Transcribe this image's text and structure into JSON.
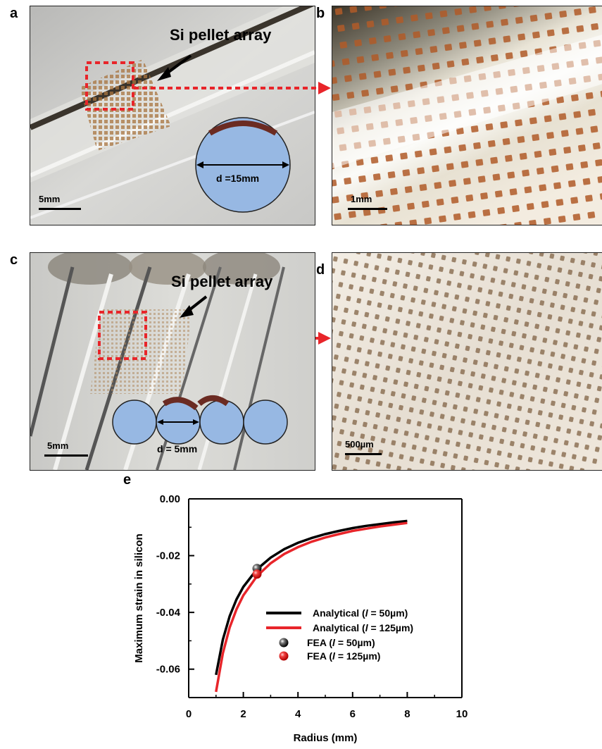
{
  "panels": {
    "a": {
      "label": "a",
      "callout": "Si pellet array",
      "scale_label": "5mm",
      "diameter_label": "d =15mm"
    },
    "b": {
      "label": "b",
      "scale_label": "1mm"
    },
    "c": {
      "label": "c",
      "callout": "Si pellet array",
      "scale_label": "5mm",
      "diameter_label": "d = 5mm"
    },
    "d": {
      "label": "d",
      "scale_label": "500µm"
    },
    "e": {
      "label": "e"
    }
  },
  "colors": {
    "circle_fill": "#97b8e3",
    "pellet_cap": "#6b2b22",
    "dash_red": "#e8252a",
    "pellet_brown": "#a8622e",
    "analytical_50": "#000000",
    "analytical_125": "#e8252a"
  },
  "chart_data": {
    "type": "line",
    "xlabel": "Radius (mm)",
    "ylabel": "Maximum strain in silicon",
    "xlim": [
      0,
      10
    ],
    "ylim": [
      -0.07,
      0.0
    ],
    "xticks": [
      "0",
      "2",
      "4",
      "6",
      "8",
      "10"
    ],
    "yticks": [
      "0.00",
      "-0.02",
      "-0.04",
      "-0.06"
    ],
    "grid": false,
    "legend_position": "lower-right",
    "series": [
      {
        "name": "Analytical (l = 50µm)",
        "legend_prefix": "Analytical (",
        "legend_var": "l",
        "legend_suffix": " = 50µm)",
        "kind": "line",
        "color": "#000000",
        "x": [
          1.0,
          1.25,
          1.5,
          1.75,
          2.0,
          2.5,
          3.0,
          3.5,
          4.0,
          4.5,
          5.0,
          5.5,
          6.0,
          6.5,
          7.0,
          7.5,
          8.0
        ],
        "y": [
          -0.062,
          -0.0496,
          -0.0413,
          -0.0354,
          -0.031,
          -0.0248,
          -0.0207,
          -0.0177,
          -0.0155,
          -0.0138,
          -0.0124,
          -0.0113,
          -0.0103,
          -0.0095,
          -0.0089,
          -0.0083,
          -0.0078
        ]
      },
      {
        "name": "Analytical (l = 125µm)",
        "legend_prefix": "Analytical (",
        "legend_var": "l",
        "legend_suffix": " = 125µm)",
        "kind": "line",
        "color": "#e8252a",
        "x": [
          1.0,
          1.25,
          1.5,
          1.75,
          2.0,
          2.5,
          3.0,
          3.5,
          4.0,
          4.5,
          5.0,
          5.5,
          6.0,
          6.5,
          7.0,
          7.5,
          8.0
        ],
        "y": [
          -0.068,
          -0.0544,
          -0.0453,
          -0.0389,
          -0.034,
          -0.0272,
          -0.0227,
          -0.0194,
          -0.017,
          -0.0151,
          -0.0136,
          -0.0124,
          -0.0113,
          -0.0105,
          -0.0097,
          -0.0091,
          -0.0085
        ]
      },
      {
        "name": "FEA (l = 50µm)",
        "legend_prefix": "FEA (",
        "legend_var": "l",
        "legend_suffix": " = 50µm)",
        "kind": "scatter",
        "color": "#000000",
        "x": [
          2.5
        ],
        "y": [
          -0.0245
        ]
      },
      {
        "name": "FEA (l = 125µm)",
        "legend_prefix": "FEA (",
        "legend_var": "l",
        "legend_suffix": " = 125µm)",
        "kind": "scatter",
        "color": "#e8252a",
        "x": [
          2.5
        ],
        "y": [
          -0.0265
        ]
      }
    ]
  }
}
